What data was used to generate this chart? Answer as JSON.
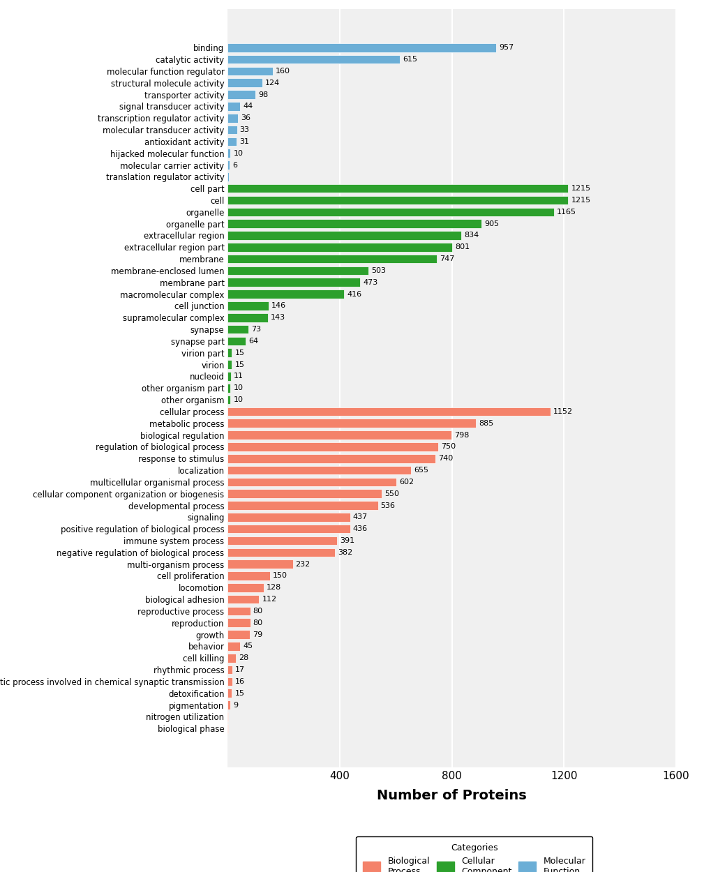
{
  "categories": [
    "binding",
    "catalytic activity",
    "molecular function regulator",
    "structural molecule activity",
    "transporter activity",
    "signal transducer activity",
    "transcription regulator activity",
    "molecular transducer activity",
    "antioxidant activity",
    "hijacked molecular function",
    "molecular carrier activity",
    "translation regulator activity",
    "cell part",
    "cell",
    "organelle",
    "organelle part",
    "extracellular region",
    "extracellular region part",
    "membrane",
    "membrane-enclosed lumen",
    "membrane part",
    "macromolecular complex",
    "cell junction",
    "supramolecular complex",
    "synapse",
    "synapse part",
    "virion part",
    "virion",
    "nucleoid",
    "other organism part",
    "other organism",
    "cellular process",
    "metabolic process",
    "biological regulation",
    "regulation of biological process",
    "response to stimulus",
    "localization",
    "multicellular organismal process",
    "cellular component organization or biogenesis",
    "developmental process",
    "signaling",
    "positive regulation of biological process",
    "immune system process",
    "negative regulation of biological process",
    "multi-organism process",
    "cell proliferation",
    "locomotion",
    "biological adhesion",
    "reproductive process",
    "reproduction",
    "growth",
    "behavior",
    "cell killing",
    "rhythmic process",
    "presynaptic process involved in chemical synaptic transmission",
    "detoxification",
    "pigmentation",
    "nitrogen utilization",
    "biological phase"
  ],
  "values": [
    957,
    615,
    160,
    124,
    98,
    44,
    36,
    33,
    31,
    10,
    6,
    3,
    1215,
    1215,
    1165,
    905,
    834,
    801,
    747,
    503,
    473,
    416,
    146,
    143,
    73,
    64,
    15,
    15,
    11,
    10,
    10,
    1152,
    885,
    798,
    750,
    740,
    655,
    602,
    550,
    536,
    437,
    436,
    391,
    382,
    232,
    150,
    128,
    112,
    80,
    80,
    79,
    45,
    28,
    17,
    16,
    15,
    9,
    2,
    1
  ],
  "colors": [
    "#6baed6",
    "#6baed6",
    "#6baed6",
    "#6baed6",
    "#6baed6",
    "#6baed6",
    "#6baed6",
    "#6baed6",
    "#6baed6",
    "#6baed6",
    "#6baed6",
    "#6baed6",
    "#2ca02c",
    "#2ca02c",
    "#2ca02c",
    "#2ca02c",
    "#2ca02c",
    "#2ca02c",
    "#2ca02c",
    "#2ca02c",
    "#2ca02c",
    "#2ca02c",
    "#2ca02c",
    "#2ca02c",
    "#2ca02c",
    "#2ca02c",
    "#2ca02c",
    "#2ca02c",
    "#2ca02c",
    "#2ca02c",
    "#2ca02c",
    "#f4826a",
    "#f4826a",
    "#f4826a",
    "#f4826a",
    "#f4826a",
    "#f4826a",
    "#f4826a",
    "#f4826a",
    "#f4826a",
    "#f4826a",
    "#f4826a",
    "#f4826a",
    "#f4826a",
    "#f4826a",
    "#f4826a",
    "#f4826a",
    "#f4826a",
    "#f4826a",
    "#f4826a",
    "#f4826a",
    "#f4826a",
    "#f4826a",
    "#f4826a",
    "#f4826a",
    "#f4826a",
    "#f4826a",
    "#f4826a",
    "#f4826a"
  ],
  "xlabel": "Number of Proteins",
  "xlim": [
    0,
    1600
  ],
  "xticks": [
    400,
    800,
    1200,
    1600
  ],
  "background_color": "#f0f0f0",
  "grid_color": "#ffffff",
  "legend_labels": [
    "Biological\nProcess",
    "Cellular\nComponent",
    "Molecular\nFunction"
  ],
  "legend_colors": [
    "#f4826a",
    "#2ca02c",
    "#6baed6"
  ]
}
